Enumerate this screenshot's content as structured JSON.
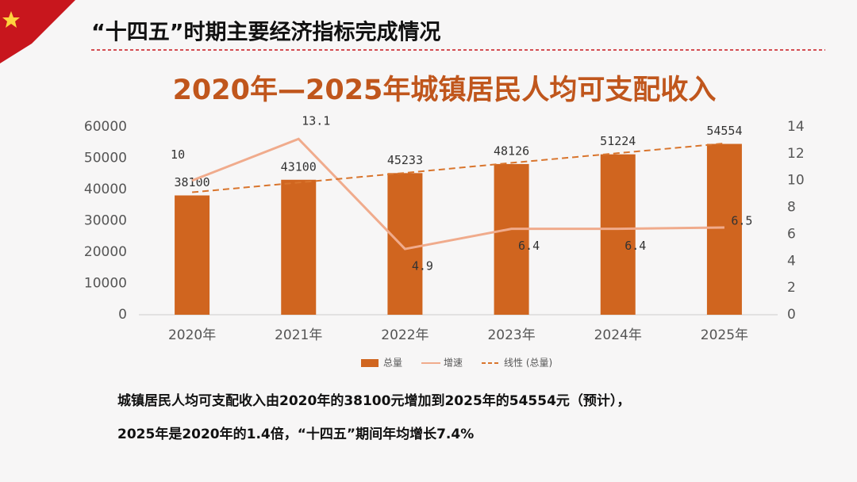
{
  "slide_title": "“十四五”时期主要经济指标完成情况",
  "chart_data": {
    "type": "bar",
    "title": "2020年—2025年城镇居民人均可支配收入",
    "categories": [
      "2020年",
      "2021年",
      "2022年",
      "2023年",
      "2024年",
      "2025年"
    ],
    "series": [
      {
        "name": "总量",
        "type": "bar",
        "color": "#d0651f",
        "values": [
          38100,
          43100,
          45233,
          48126,
          51224,
          54554
        ]
      },
      {
        "name": "增速",
        "type": "line",
        "axis": "y2",
        "color": "#f0ab8c",
        "values": [
          10,
          13.1,
          4.9,
          6.4,
          6.4,
          6.5
        ]
      },
      {
        "name": "线性 (总量)",
        "type": "line",
        "dash": true,
        "color": "#d9752d",
        "values": [
          39100,
          42200,
          45300,
          48500,
          51600,
          54700
        ]
      }
    ],
    "ylim": [
      0,
      60000
    ],
    "yticks": [
      0,
      10000,
      20000,
      30000,
      40000,
      50000,
      60000
    ],
    "y2lim": [
      0,
      14
    ],
    "y2ticks": [
      0,
      2,
      4,
      6,
      8,
      10,
      12,
      14
    ],
    "legend": "bottom"
  },
  "caption": [
    "城镇居民人均可支配收入由2020年的38100元增加到2025年的54554元（预计），",
    "2025年是2020年的1.4倍，“十四五”期间年均增长7.4%"
  ]
}
